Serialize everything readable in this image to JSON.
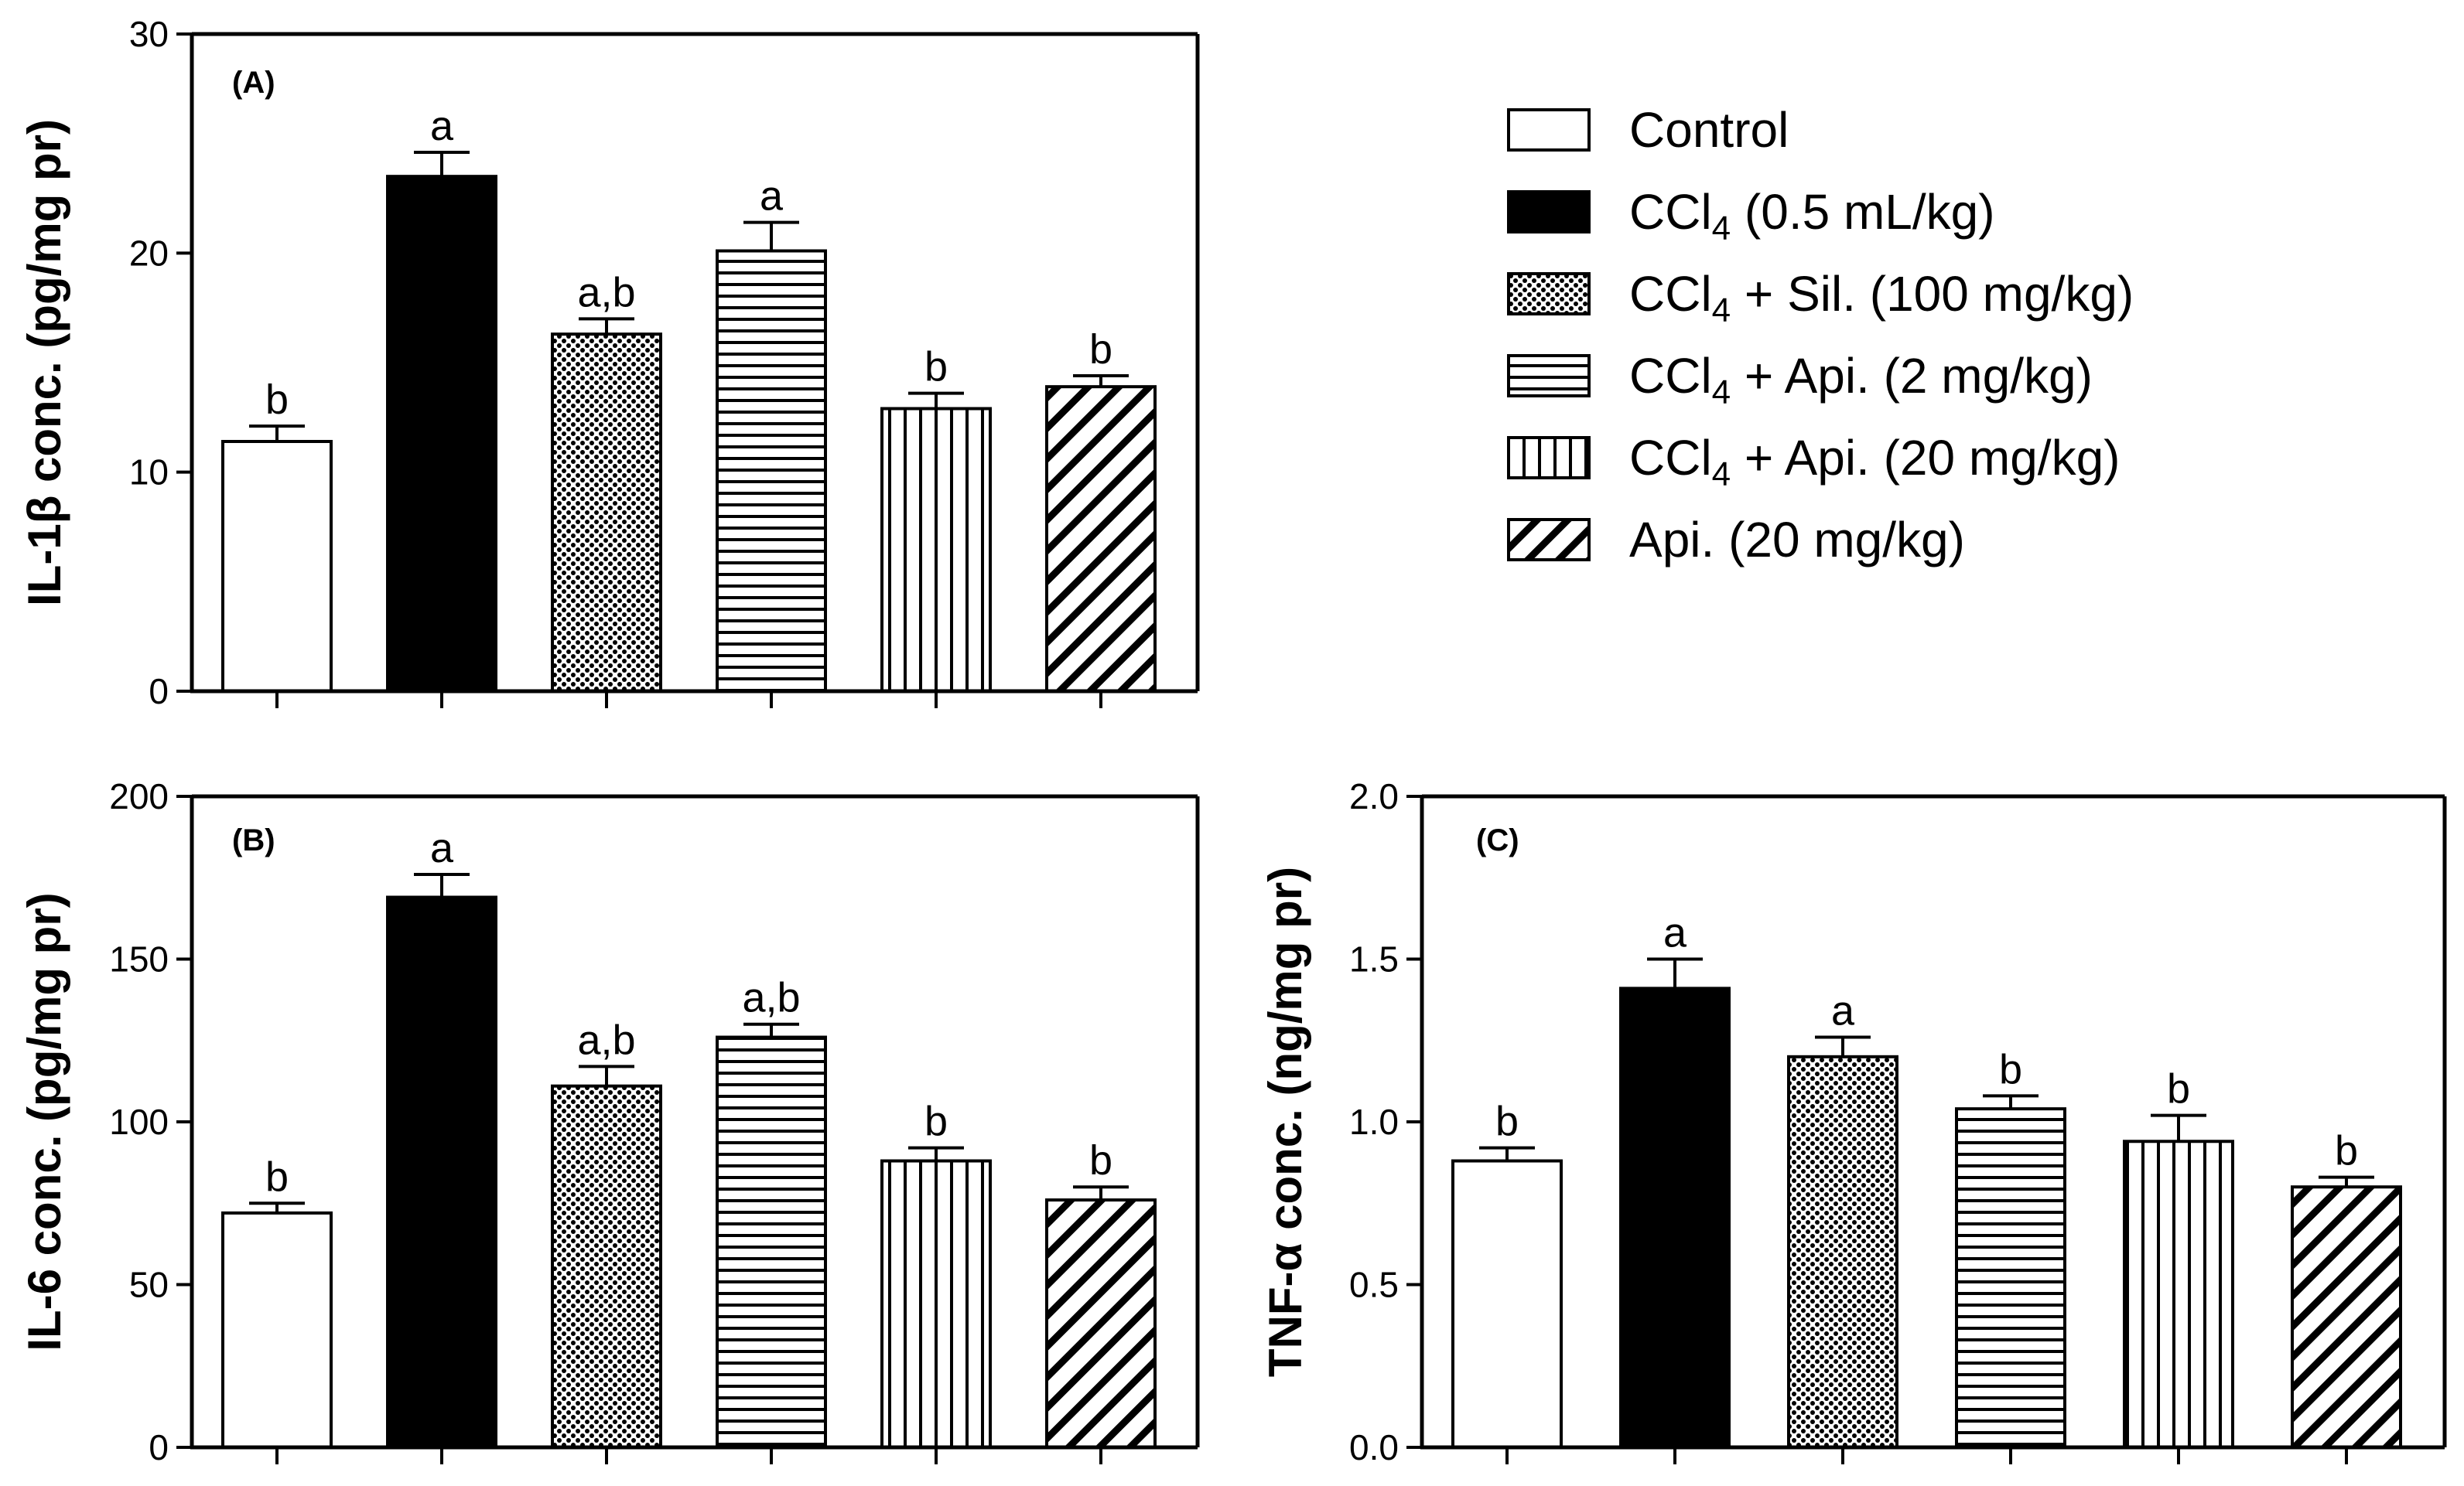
{
  "colors": {
    "ink": "#000000",
    "background": "#ffffff"
  },
  "legend": {
    "entries": [
      {
        "pattern": "white",
        "parts": [
          {
            "t": "Control"
          }
        ]
      },
      {
        "pattern": "black",
        "parts": [
          {
            "t": "CCl"
          },
          {
            "t": "4",
            "sub": true
          },
          {
            "t": " (0.5 mL/kg)"
          }
        ]
      },
      {
        "pattern": "dots",
        "parts": [
          {
            "t": "CCl"
          },
          {
            "t": "4",
            "sub": true
          },
          {
            "t": " + Sil. (100 mg/kg)"
          }
        ]
      },
      {
        "pattern": "hlines",
        "parts": [
          {
            "t": "CCl"
          },
          {
            "t": "4",
            "sub": true
          },
          {
            "t": " + Api. (2 mg/kg)"
          }
        ]
      },
      {
        "pattern": "vlines",
        "parts": [
          {
            "t": "CCl"
          },
          {
            "t": "4",
            "sub": true
          },
          {
            "t": " + Api. (20 mg/kg)"
          }
        ]
      },
      {
        "pattern": "diag",
        "parts": [
          {
            "t": "Api. (20 mg/kg)"
          }
        ]
      }
    ]
  },
  "chart_data": [
    {
      "type": "bar",
      "panel_label": "(A)",
      "ylabel": "IL-1β conc. (pg/mg pr)",
      "ylim": [
        0,
        30
      ],
      "yticks": [
        0,
        10,
        20,
        30
      ],
      "ytick_labels": [
        "0",
        "10",
        "20",
        "30"
      ],
      "categories": [
        "Control",
        "CCl4 (0.5 mL/kg)",
        "CCl4 + Sil. (100 mg/kg)",
        "CCl4 + Api. (2 mg/kg)",
        "CCl4 + Api. (20 mg/kg)",
        "Api. (20 mg/kg)"
      ],
      "values": [
        11.4,
        23.5,
        16.3,
        20.1,
        12.9,
        13.9
      ],
      "errors": [
        0.7,
        1.1,
        0.7,
        1.3,
        0.7,
        0.5
      ],
      "annotations": [
        "b",
        "a",
        "a,b",
        "a",
        "b",
        "b"
      ]
    },
    {
      "type": "bar",
      "panel_label": "(B)",
      "ylabel": "IL-6 conc. (pg/mg pr)",
      "ylim": [
        0,
        200
      ],
      "yticks": [
        0,
        50,
        100,
        150,
        200
      ],
      "ytick_labels": [
        "0",
        "50",
        "100",
        "150",
        "200"
      ],
      "categories": [
        "Control",
        "CCl4 (0.5 mL/kg)",
        "CCl4 + Sil. (100 mg/kg)",
        "CCl4 + Api. (2 mg/kg)",
        "CCl4 + Api. (20 mg/kg)",
        "Api. (20 mg/kg)"
      ],
      "values": [
        72,
        169,
        111,
        126,
        88,
        76
      ],
      "errors": [
        3,
        7,
        6,
        4,
        4,
        4
      ],
      "annotations": [
        "b",
        "a",
        "a,b",
        "a,b",
        "b",
        "b"
      ]
    },
    {
      "type": "bar",
      "panel_label": "(C)",
      "ylabel": "TNF-α conc. (ng/mg pr)",
      "ylim": [
        0,
        2.0
      ],
      "yticks": [
        0,
        0.5,
        1.0,
        1.5,
        2.0
      ],
      "ytick_labels": [
        "0.0",
        "0.5",
        "1.0",
        "1.5",
        "2.0"
      ],
      "categories": [
        "Control",
        "CCl4 (0.5 mL/kg)",
        "CCl4 + Sil. (100 mg/kg)",
        "CCl4 + Api. (2 mg/kg)",
        "CCl4 + Api. (20 mg/kg)",
        "Api. (20 mg/kg)"
      ],
      "values": [
        0.88,
        1.41,
        1.2,
        1.04,
        0.94,
        0.8
      ],
      "errors": [
        0.04,
        0.09,
        0.06,
        0.04,
        0.08,
        0.03
      ],
      "annotations": [
        "b",
        "a",
        "a",
        "b",
        "b",
        "b"
      ]
    }
  ]
}
